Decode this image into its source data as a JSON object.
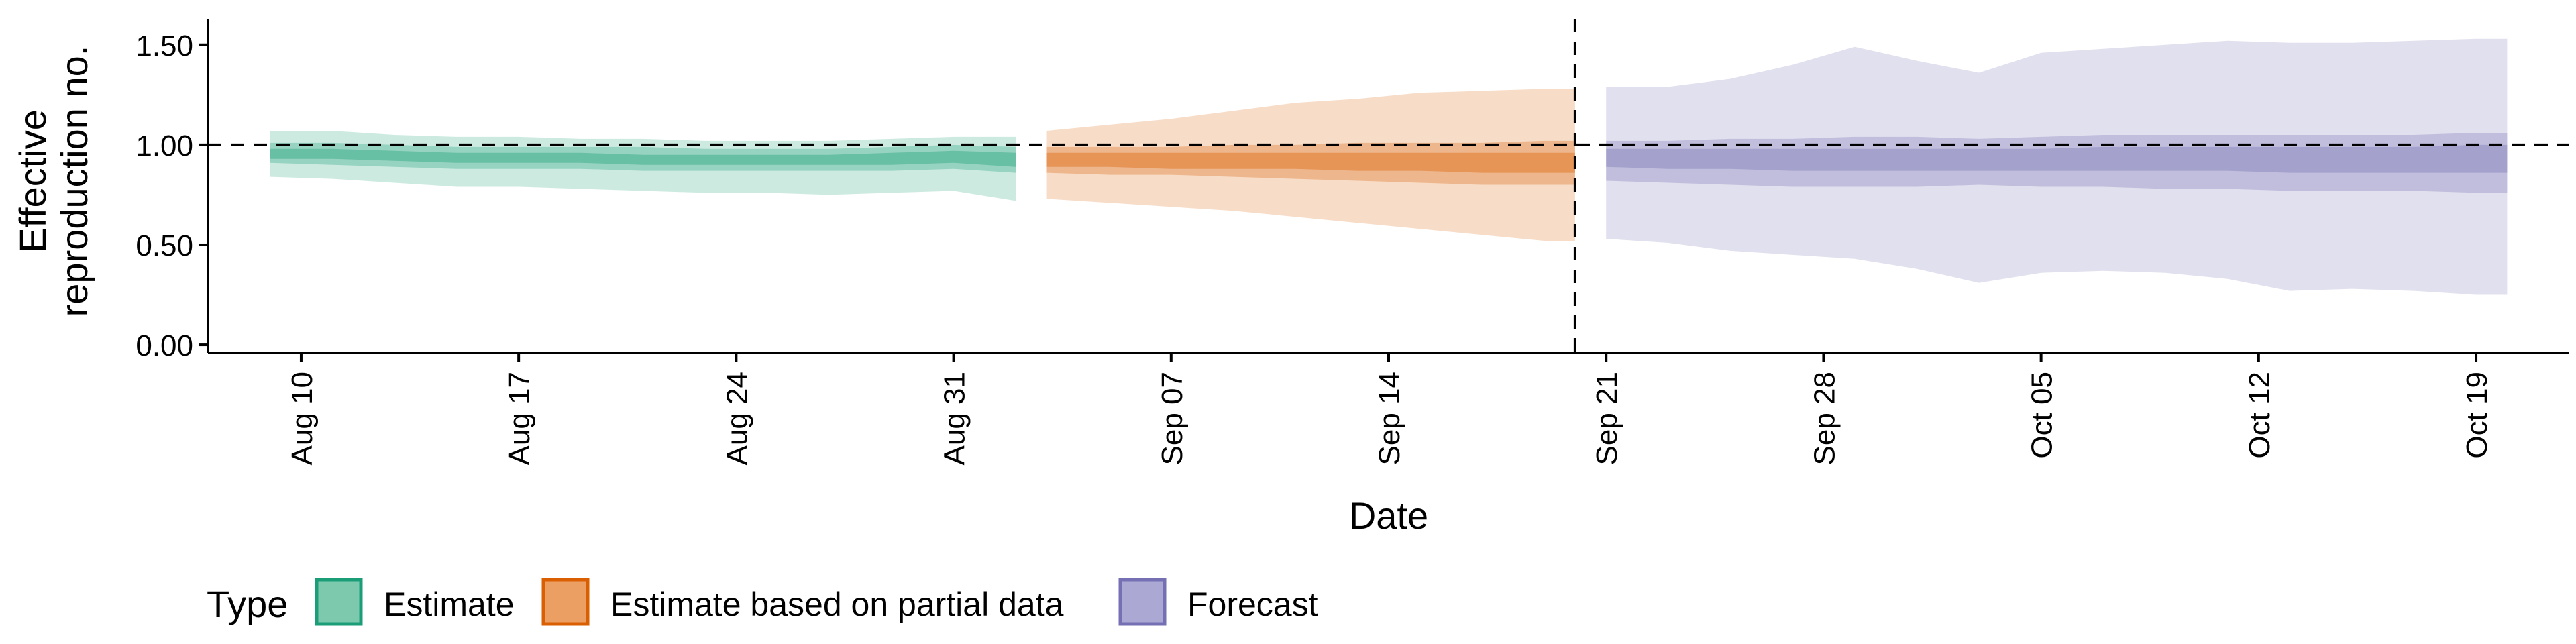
{
  "chart_data": {
    "type": "area",
    "xlabel": "Date",
    "ylabel_lines": [
      "Effective",
      "reproduction no."
    ],
    "xlim": [
      "2020-08-07",
      "2020-10-22"
    ],
    "ylim": [
      -0.04,
      1.63
    ],
    "y_ticks": [
      {
        "value": 0.0,
        "label": "0.00"
      },
      {
        "value": 0.5,
        "label": "0.50"
      },
      {
        "value": 1.0,
        "label": "1.00"
      },
      {
        "value": 1.5,
        "label": "1.50"
      }
    ],
    "x_ticks": [
      {
        "date": "2020-08-10",
        "label": "Aug 10"
      },
      {
        "date": "2020-08-17",
        "label": "Aug 17"
      },
      {
        "date": "2020-08-24",
        "label": "Aug 24"
      },
      {
        "date": "2020-08-31",
        "label": "Aug 31"
      },
      {
        "date": "2020-09-07",
        "label": "Sep 07"
      },
      {
        "date": "2020-09-14",
        "label": "Sep 14"
      },
      {
        "date": "2020-09-21",
        "label": "Sep 21"
      },
      {
        "date": "2020-09-28",
        "label": "Sep 28"
      },
      {
        "date": "2020-10-05",
        "label": "Oct 05"
      },
      {
        "date": "2020-10-12",
        "label": "Oct 12"
      },
      {
        "date": "2020-10-19",
        "label": "Oct 19"
      }
    ],
    "reference_line_y": 1.0,
    "vertical_line_date": "2020-09-20",
    "grid": false,
    "legend": {
      "position": "bottom-left",
      "title": "Type",
      "items": [
        {
          "key": "estimate",
          "label": "Estimate",
          "fill": "#7cc9ae",
          "stroke": "#1b9e77"
        },
        {
          "key": "partial",
          "label": "Estimate based on partial data",
          "fill": "#eb9f63",
          "stroke": "#d95f02"
        },
        {
          "key": "forecast",
          "label": "Forecast",
          "fill": "#aba8d4",
          "stroke": "#7570b3"
        }
      ]
    },
    "series": [
      {
        "key": "estimate",
        "name": "Estimate",
        "color": "#1b9e77",
        "points": [
          {
            "date": "2020-08-09",
            "lo90": 0.84,
            "hi90": 1.07,
            "lo50": 0.91,
            "hi50": 1.01,
            "lo20": 0.93,
            "hi20": 0.98
          },
          {
            "date": "2020-08-11",
            "lo90": 0.83,
            "hi90": 1.07,
            "lo50": 0.9,
            "hi50": 1.01,
            "lo20": 0.93,
            "hi20": 0.98
          },
          {
            "date": "2020-08-13",
            "lo90": 0.81,
            "hi90": 1.05,
            "lo50": 0.89,
            "hi50": 1.0,
            "lo20": 0.92,
            "hi20": 0.97
          },
          {
            "date": "2020-08-15",
            "lo90": 0.79,
            "hi90": 1.04,
            "lo50": 0.88,
            "hi50": 0.99,
            "lo20": 0.91,
            "hi20": 0.96
          },
          {
            "date": "2020-08-17",
            "lo90": 0.79,
            "hi90": 1.04,
            "lo50": 0.88,
            "hi50": 0.99,
            "lo20": 0.91,
            "hi20": 0.96
          },
          {
            "date": "2020-08-19",
            "lo90": 0.78,
            "hi90": 1.03,
            "lo50": 0.88,
            "hi50": 0.99,
            "lo20": 0.91,
            "hi20": 0.96
          },
          {
            "date": "2020-08-21",
            "lo90": 0.77,
            "hi90": 1.03,
            "lo50": 0.87,
            "hi50": 0.99,
            "lo20": 0.9,
            "hi20": 0.95
          },
          {
            "date": "2020-08-23",
            "lo90": 0.76,
            "hi90": 1.02,
            "lo50": 0.87,
            "hi50": 0.98,
            "lo20": 0.9,
            "hi20": 0.95
          },
          {
            "date": "2020-08-25",
            "lo90": 0.76,
            "hi90": 1.02,
            "lo50": 0.87,
            "hi50": 0.98,
            "lo20": 0.9,
            "hi20": 0.95
          },
          {
            "date": "2020-08-27",
            "lo90": 0.75,
            "hi90": 1.02,
            "lo50": 0.87,
            "hi50": 0.98,
            "lo20": 0.9,
            "hi20": 0.95
          },
          {
            "date": "2020-08-29",
            "lo90": 0.76,
            "hi90": 1.03,
            "lo50": 0.87,
            "hi50": 0.99,
            "lo20": 0.9,
            "hi20": 0.96
          },
          {
            "date": "2020-08-31",
            "lo90": 0.77,
            "hi90": 1.04,
            "lo50": 0.88,
            "hi50": 1.0,
            "lo20": 0.91,
            "hi20": 0.97
          },
          {
            "date": "2020-09-02",
            "lo90": 0.72,
            "hi90": 1.04,
            "lo50": 0.86,
            "hi50": 0.99,
            "lo20": 0.89,
            "hi20": 0.96
          }
        ]
      },
      {
        "key": "partial",
        "name": "Estimate based on partial data",
        "color": "#d95f02",
        "points": [
          {
            "date": "2020-09-03",
            "lo90": 0.73,
            "hi90": 1.07,
            "lo50": 0.86,
            "hi50": 0.99,
            "lo20": 0.89,
            "hi20": 0.96
          },
          {
            "date": "2020-09-05",
            "lo90": 0.71,
            "hi90": 1.1,
            "lo50": 0.85,
            "hi50": 0.99,
            "lo20": 0.89,
            "hi20": 0.96
          },
          {
            "date": "2020-09-07",
            "lo90": 0.69,
            "hi90": 1.13,
            "lo50": 0.85,
            "hi50": 0.99,
            "lo20": 0.88,
            "hi20": 0.96
          },
          {
            "date": "2020-09-09",
            "lo90": 0.67,
            "hi90": 1.17,
            "lo50": 0.84,
            "hi50": 1.0,
            "lo20": 0.88,
            "hi20": 0.96
          },
          {
            "date": "2020-09-11",
            "lo90": 0.64,
            "hi90": 1.21,
            "lo50": 0.83,
            "hi50": 1.0,
            "lo20": 0.88,
            "hi20": 0.96
          },
          {
            "date": "2020-09-13",
            "lo90": 0.61,
            "hi90": 1.23,
            "lo50": 0.82,
            "hi50": 1.01,
            "lo20": 0.87,
            "hi20": 0.96
          },
          {
            "date": "2020-09-15",
            "lo90": 0.58,
            "hi90": 1.26,
            "lo50": 0.81,
            "hi50": 1.01,
            "lo20": 0.87,
            "hi20": 0.96
          },
          {
            "date": "2020-09-17",
            "lo90": 0.55,
            "hi90": 1.27,
            "lo50": 0.8,
            "hi50": 1.01,
            "lo20": 0.86,
            "hi20": 0.96
          },
          {
            "date": "2020-09-19",
            "lo90": 0.52,
            "hi90": 1.28,
            "lo50": 0.8,
            "hi50": 1.02,
            "lo20": 0.86,
            "hi20": 0.96
          },
          {
            "date": "2020-09-20",
            "lo90": 0.52,
            "hi90": 1.28,
            "lo50": 0.8,
            "hi50": 1.02,
            "lo20": 0.86,
            "hi20": 0.96
          }
        ]
      },
      {
        "key": "forecast",
        "name": "Forecast",
        "color": "#7570b3",
        "points": [
          {
            "date": "2020-09-21",
            "lo90": 0.53,
            "hi90": 1.29,
            "lo50": 0.82,
            "hi50": 1.02,
            "lo20": 0.89,
            "hi20": 0.98
          },
          {
            "date": "2020-09-23",
            "lo90": 0.51,
            "hi90": 1.29,
            "lo50": 0.81,
            "hi50": 1.02,
            "lo20": 0.88,
            "hi20": 0.98
          },
          {
            "date": "2020-09-25",
            "lo90": 0.47,
            "hi90": 1.33,
            "lo50": 0.8,
            "hi50": 1.03,
            "lo20": 0.88,
            "hi20": 0.98
          },
          {
            "date": "2020-09-27",
            "lo90": 0.45,
            "hi90": 1.4,
            "lo50": 0.79,
            "hi50": 1.03,
            "lo20": 0.87,
            "hi20": 0.98
          },
          {
            "date": "2020-09-29",
            "lo90": 0.43,
            "hi90": 1.49,
            "lo50": 0.79,
            "hi50": 1.04,
            "lo20": 0.87,
            "hi20": 0.98
          },
          {
            "date": "2020-10-01",
            "lo90": 0.38,
            "hi90": 1.42,
            "lo50": 0.79,
            "hi50": 1.04,
            "lo20": 0.87,
            "hi20": 0.98
          },
          {
            "date": "2020-10-03",
            "lo90": 0.31,
            "hi90": 1.36,
            "lo50": 0.8,
            "hi50": 1.03,
            "lo20": 0.87,
            "hi20": 0.98
          },
          {
            "date": "2020-10-05",
            "lo90": 0.36,
            "hi90": 1.46,
            "lo50": 0.79,
            "hi50": 1.04,
            "lo20": 0.87,
            "hi20": 0.98
          },
          {
            "date": "2020-10-07",
            "lo90": 0.37,
            "hi90": 1.48,
            "lo50": 0.79,
            "hi50": 1.05,
            "lo20": 0.87,
            "hi20": 0.99
          },
          {
            "date": "2020-10-09",
            "lo90": 0.36,
            "hi90": 1.5,
            "lo50": 0.78,
            "hi50": 1.05,
            "lo20": 0.87,
            "hi20": 0.99
          },
          {
            "date": "2020-10-11",
            "lo90": 0.33,
            "hi90": 1.52,
            "lo50": 0.78,
            "hi50": 1.05,
            "lo20": 0.87,
            "hi20": 0.99
          },
          {
            "date": "2020-10-13",
            "lo90": 0.27,
            "hi90": 1.51,
            "lo50": 0.77,
            "hi50": 1.05,
            "lo20": 0.86,
            "hi20": 0.99
          },
          {
            "date": "2020-10-15",
            "lo90": 0.28,
            "hi90": 1.51,
            "lo50": 0.77,
            "hi50": 1.05,
            "lo20": 0.86,
            "hi20": 0.99
          },
          {
            "date": "2020-10-17",
            "lo90": 0.27,
            "hi90": 1.52,
            "lo50": 0.77,
            "hi50": 1.05,
            "lo20": 0.86,
            "hi20": 0.99
          },
          {
            "date": "2020-10-19",
            "lo90": 0.25,
            "hi90": 1.53,
            "lo50": 0.76,
            "hi50": 1.06,
            "lo20": 0.86,
            "hi20": 1.0
          },
          {
            "date": "2020-10-20",
            "lo90": 0.25,
            "hi90": 1.53,
            "lo50": 0.76,
            "hi50": 1.06,
            "lo20": 0.86,
            "hi20": 1.0
          }
        ]
      }
    ]
  }
}
